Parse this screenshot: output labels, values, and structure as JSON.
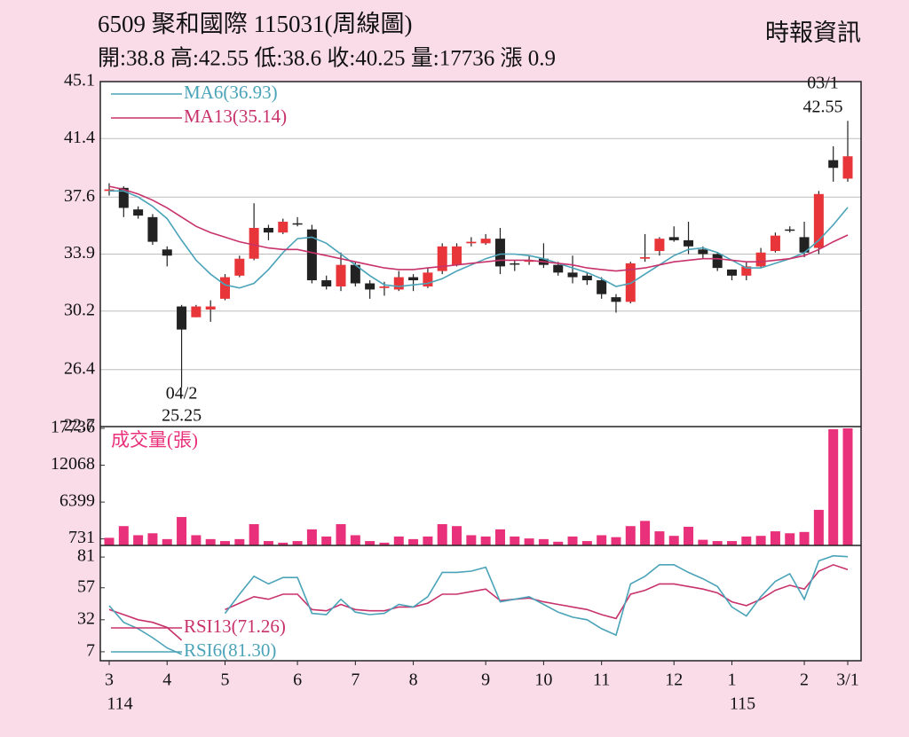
{
  "chart_data": {
    "type": "candlestick",
    "title": "6509  聚和國際 115031(周線圖)",
    "source": "時報資訊",
    "subtitle": "開:38.8 高:42.55 低:38.6 收:40.25 量:17736 漲 0.9",
    "categories": [
      "3",
      null,
      null,
      null,
      "4",
      null,
      null,
      null,
      "5",
      null,
      null,
      null,
      null,
      "6",
      null,
      null,
      null,
      "7",
      null,
      null,
      null,
      "8",
      null,
      null,
      null,
      null,
      "9",
      null,
      null,
      null,
      "10",
      null,
      null,
      null,
      "11",
      null,
      null,
      null,
      null,
      "12",
      null,
      null,
      null,
      "1",
      null,
      null,
      null,
      null,
      "2",
      null,
      null,
      "3/1"
    ],
    "years": [
      "114",
      null,
      null,
      null,
      null,
      null,
      null,
      null,
      null,
      null,
      null,
      null,
      null,
      null,
      null,
      null,
      null,
      null,
      null,
      null,
      null,
      null,
      null,
      null,
      null,
      null,
      null,
      null,
      null,
      null,
      null,
      null,
      null,
      null,
      null,
      null,
      null,
      null,
      null,
      null,
      null,
      null,
      null,
      "115",
      null,
      null,
      null,
      null,
      null,
      null,
      null,
      null
    ],
    "open": [
      38.0,
      38.2,
      36.8,
      36.3,
      34.2,
      30.5,
      29.8,
      30.3,
      31.0,
      32.5,
      33.6,
      35.6,
      35.3,
      35.9,
      35.5,
      32.2,
      31.8,
      33.2,
      32.0,
      31.7,
      31.6,
      32.4,
      31.8,
      32.8,
      33.2,
      34.6,
      34.6,
      34.9,
      33.3,
      33.4,
      33.6,
      33.2,
      32.7,
      32.5,
      32.2,
      31.1,
      30.8,
      33.6,
      34.1,
      35.0,
      34.8,
      34.2,
      33.9,
      32.9,
      32.5,
      33.1,
      34.1,
      35.5,
      35.0,
      34.3,
      40.0,
      38.8
    ],
    "high": [
      38.5,
      38.3,
      37.0,
      36.5,
      34.4,
      30.6,
      30.6,
      30.9,
      32.6,
      33.8,
      37.2,
      35.8,
      36.2,
      36.3,
      35.8,
      32.5,
      34.0,
      33.4,
      32.2,
      32.1,
      32.8,
      32.6,
      33.0,
      34.6,
      34.6,
      35.0,
      35.2,
      35.6,
      33.5,
      33.8,
      34.6,
      33.4,
      33.8,
      32.7,
      32.4,
      31.3,
      33.4,
      35.2,
      35.0,
      35.7,
      36.0,
      34.4,
      34.0,
      32.9,
      33.4,
      34.3,
      35.3,
      35.7,
      36.0,
      38.0,
      40.9,
      42.55
    ],
    "low": [
      37.7,
      36.3,
      36.2,
      34.5,
      33.1,
      25.25,
      29.8,
      29.5,
      30.9,
      32.4,
      33.5,
      34.8,
      35.2,
      35.7,
      32.0,
      31.6,
      31.5,
      31.8,
      31.0,
      31.2,
      31.5,
      31.5,
      31.7,
      32.6,
      33.1,
      34.4,
      34.5,
      32.6,
      32.8,
      33.2,
      33.0,
      32.5,
      32.0,
      31.9,
      31.0,
      30.1,
      30.7,
      33.4,
      33.8,
      34.7,
      33.9,
      33.6,
      32.8,
      32.2,
      32.2,
      33.0,
      34.0,
      35.3,
      33.7,
      33.9,
      38.6,
      38.6
    ],
    "close": [
      38.1,
      36.9,
      36.4,
      34.7,
      33.8,
      29.0,
      30.5,
      30.5,
      32.4,
      33.6,
      35.6,
      35.3,
      36.0,
      35.9,
      32.2,
      31.8,
      33.2,
      32.0,
      31.6,
      31.8,
      32.4,
      32.2,
      32.7,
      34.4,
      34.4,
      34.7,
      34.9,
      33.1,
      33.3,
      33.5,
      33.2,
      32.7,
      32.4,
      32.2,
      31.3,
      30.8,
      33.3,
      33.7,
      34.9,
      34.8,
      34.4,
      33.9,
      33.0,
      32.5,
      33.1,
      34.0,
      35.1,
      35.5,
      34.0,
      37.8,
      39.5,
      40.25
    ],
    "up_color": "#e8353a",
    "down_color": "#222222",
    "ylim": [
      22.7,
      45.1
    ],
    "yticks": [
      22.7,
      26.4,
      30.2,
      33.9,
      37.6,
      41.4,
      45.1
    ],
    "grid": true,
    "series": [
      {
        "name": "MA6(36.93)",
        "color": "#4aa3b8",
        "values": [
          38.0,
          38.0,
          37.6,
          37.0,
          36.2,
          34.8,
          33.5,
          32.6,
          31.9,
          31.7,
          32.0,
          32.9,
          34.0,
          34.9,
          35.0,
          34.6,
          33.9,
          33.2,
          32.5,
          31.9,
          31.8,
          31.9,
          32.0,
          32.3,
          32.8,
          33.2,
          33.6,
          33.9,
          33.9,
          33.8,
          33.6,
          33.3,
          33.0,
          32.7,
          32.3,
          31.8,
          32.0,
          32.6,
          33.2,
          33.8,
          34.2,
          34.3,
          34.0,
          33.5,
          33.0,
          33.0,
          33.3,
          33.6,
          34.0,
          34.8,
          35.8,
          36.93
        ]
      },
      {
        "name": "MA13(35.14)",
        "color": "#c8326b",
        "values": [
          38.3,
          38.1,
          37.8,
          37.4,
          36.9,
          36.3,
          35.7,
          35.3,
          35.0,
          34.7,
          34.5,
          34.3,
          34.2,
          34.2,
          34.0,
          33.8,
          33.6,
          33.4,
          33.2,
          33.0,
          32.9,
          32.9,
          33.0,
          33.1,
          33.2,
          33.3,
          33.4,
          33.5,
          33.5,
          33.5,
          33.4,
          33.3,
          33.2,
          33.0,
          32.9,
          32.8,
          32.9,
          33.0,
          33.2,
          33.4,
          33.5,
          33.6,
          33.6,
          33.5,
          33.4,
          33.4,
          33.5,
          33.6,
          33.8,
          34.2,
          34.7,
          35.14
        ]
      }
    ],
    "annotations": [
      {
        "label": "04/2",
        "value": 25.25,
        "field": "low"
      },
      {
        "label": "03/1",
        "value": 42.55,
        "field": "high"
      }
    ],
    "volume": {
      "label": "成交量(張)",
      "color": "#e8317a",
      "ylim": [
        0,
        17736
      ],
      "yticks": [
        731,
        6399,
        12068,
        17736
      ],
      "values": [
        900,
        2700,
        1300,
        1600,
        700,
        4100,
        1300,
        700,
        400,
        700,
        3000,
        400,
        150,
        400,
        2200,
        1100,
        3000,
        1300,
        400,
        150,
        1100,
        700,
        1100,
        3000,
        2700,
        1300,
        1100,
        2200,
        1100,
        800,
        700,
        300,
        1100,
        400,
        1300,
        1000,
        2700,
        3500,
        1900,
        1200,
        2600,
        600,
        400,
        400,
        1100,
        1200,
        1900,
        1600,
        1800,
        5200,
        17600,
        17736
      ]
    },
    "rsi": {
      "ylim": [
        0,
        88
      ],
      "yticks": [
        7,
        32,
        57,
        81
      ],
      "series": [
        {
          "name": "RSI13(71.26)",
          "color": "#c8326b",
          "values": [
            40,
            36,
            32,
            30,
            26,
            16,
            null,
            null,
            40,
            45,
            50,
            48,
            52,
            52,
            40,
            39,
            44,
            40,
            39,
            39,
            42,
            42,
            45,
            52,
            52,
            54,
            56,
            47,
            48,
            49,
            46,
            44,
            42,
            40,
            36,
            33,
            52,
            55,
            60,
            60,
            58,
            56,
            53,
            46,
            43,
            48,
            55,
            59,
            56,
            70,
            75,
            71.26
          ]
        },
        {
          "name": "RSI6(81.30)",
          "color": "#4aa3b8",
          "values": [
            43,
            30,
            25,
            18,
            10,
            5,
            null,
            null,
            37,
            52,
            66,
            60,
            65,
            65,
            37,
            36,
            48,
            38,
            36,
            37,
            44,
            42,
            50,
            69,
            69,
            70,
            73,
            46,
            48,
            50,
            44,
            38,
            34,
            32,
            25,
            20,
            60,
            66,
            75,
            75,
            69,
            64,
            58,
            42,
            35,
            50,
            62,
            68,
            48,
            78,
            82,
            81.3
          ]
        }
      ]
    }
  }
}
